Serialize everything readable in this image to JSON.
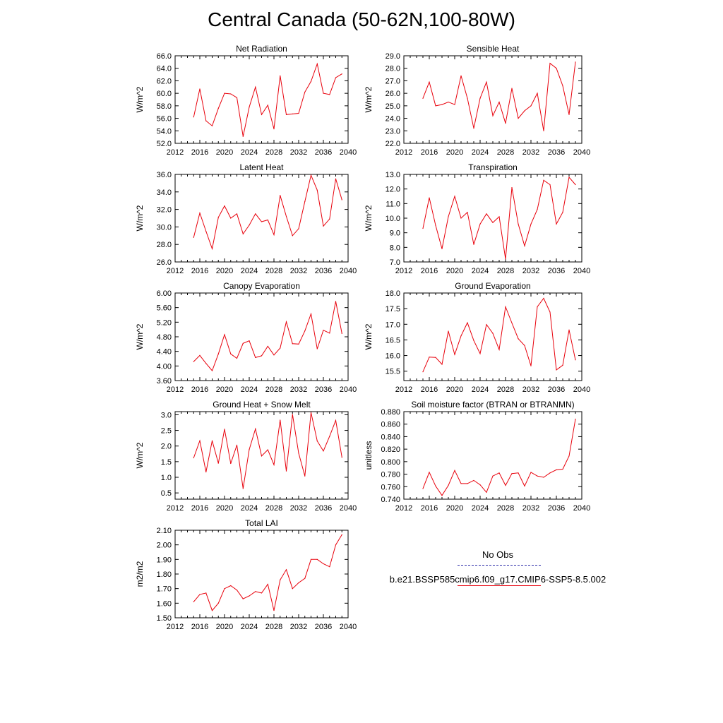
{
  "title": "Central Canada (50-62N,100-80W)",
  "colors": {
    "model": "#e8000b",
    "obs": "#2a2aa8"
  },
  "legend": {
    "obs_label": "No Obs",
    "model_label": "b.e21.BSSP585cmip6.f09_g17.CMIP6-SSP5-8.5.002"
  },
  "chart_data": [
    {
      "type": "line",
      "title": "Net Radiation",
      "ylabel": "W/m^2",
      "xlim": [
        2012,
        2040
      ],
      "xticks": [
        2012,
        2016,
        2020,
        2024,
        2028,
        2032,
        2036,
        2040
      ],
      "ylim": [
        52,
        66
      ],
      "yticks": [
        "52.0",
        "54.0",
        "56.0",
        "58.0",
        "60.0",
        "62.0",
        "64.0",
        "66.0"
      ],
      "x": [
        2015,
        2016,
        2017,
        2018,
        2019,
        2020,
        2021,
        2022,
        2023,
        2024,
        2025,
        2026,
        2027,
        2028,
        2029,
        2030,
        2031,
        2032,
        2033,
        2034,
        2035,
        2036,
        2037,
        2038,
        2039
      ],
      "series": [
        {
          "values": [
            56.2,
            60.7,
            55.6,
            54.8,
            57.6,
            60.0,
            59.9,
            59.3,
            53.1,
            57.8,
            61.0,
            56.6,
            58.1,
            54.3,
            62.8,
            56.6,
            56.7,
            56.8,
            60.2,
            61.9,
            64.7,
            60.0,
            59.8,
            62.5,
            63.1
          ]
        }
      ]
    },
    {
      "type": "line",
      "title": "Sensible Heat",
      "ylabel": "W/m^2",
      "xlim": [
        2012,
        2040
      ],
      "xticks": [
        2012,
        2016,
        2020,
        2024,
        2028,
        2032,
        2036,
        2040
      ],
      "ylim": [
        22,
        29
      ],
      "yticks": [
        "22.0",
        "23.0",
        "24.0",
        "25.0",
        "26.0",
        "27.0",
        "28.0",
        "29.0"
      ],
      "x": [
        2015,
        2016,
        2017,
        2018,
        2019,
        2020,
        2021,
        2022,
        2023,
        2024,
        2025,
        2026,
        2027,
        2028,
        2029,
        2030,
        2031,
        2032,
        2033,
        2034,
        2035,
        2036,
        2037,
        2038,
        2039
      ],
      "series": [
        {
          "values": [
            25.6,
            26.9,
            25.0,
            25.1,
            25.3,
            25.1,
            27.4,
            25.6,
            23.2,
            25.6,
            26.9,
            24.2,
            25.3,
            23.6,
            26.4,
            24.0,
            24.6,
            25.0,
            26.0,
            23.0,
            28.4,
            28.0,
            26.6,
            24.3,
            28.5
          ]
        }
      ]
    },
    {
      "type": "line",
      "title": "Latent Heat",
      "ylabel": "W/m^2",
      "xlim": [
        2012,
        2040
      ],
      "xticks": [
        2012,
        2016,
        2020,
        2024,
        2028,
        2032,
        2036,
        2040
      ],
      "ylim": [
        26,
        36
      ],
      "yticks": [
        "26.0",
        "28.0",
        "30.0",
        "32.0",
        "34.0",
        "36.0"
      ],
      "x": [
        2015,
        2016,
        2017,
        2018,
        2019,
        2020,
        2021,
        2022,
        2023,
        2024,
        2025,
        2026,
        2027,
        2028,
        2029,
        2030,
        2031,
        2032,
        2033,
        2034,
        2035,
        2036,
        2037,
        2038,
        2039
      ],
      "series": [
        {
          "values": [
            28.8,
            31.6,
            29.5,
            27.5,
            31.1,
            32.4,
            31.0,
            31.5,
            29.2,
            30.2,
            31.5,
            30.6,
            30.8,
            29.1,
            33.6,
            31.2,
            29.0,
            29.8,
            32.9,
            35.9,
            34.2,
            30.1,
            30.9,
            35.5,
            33.1
          ]
        }
      ]
    },
    {
      "type": "line",
      "title": "Transpiration",
      "ylabel": "W/m^2",
      "xlim": [
        2012,
        2040
      ],
      "xticks": [
        2012,
        2016,
        2020,
        2024,
        2028,
        2032,
        2036,
        2040
      ],
      "ylim": [
        7,
        13
      ],
      "yticks": [
        "7.0",
        "8.0",
        "9.0",
        "10.0",
        "11.0",
        "12.0",
        "13.0"
      ],
      "x": [
        2015,
        2016,
        2017,
        2018,
        2019,
        2020,
        2021,
        2022,
        2023,
        2024,
        2025,
        2026,
        2027,
        2028,
        2029,
        2030,
        2031,
        2032,
        2033,
        2034,
        2035,
        2036,
        2037,
        2038,
        2039
      ],
      "series": [
        {
          "values": [
            9.3,
            11.4,
            9.5,
            7.9,
            10.1,
            11.5,
            10.0,
            10.4,
            8.2,
            9.6,
            10.3,
            9.7,
            10.1,
            7.2,
            12.1,
            9.6,
            8.1,
            9.6,
            10.6,
            12.6,
            12.3,
            9.6,
            10.4,
            12.8,
            12.3
          ]
        }
      ]
    },
    {
      "type": "line",
      "title": "Canopy Evaporation",
      "ylabel": "W/m^2",
      "xlim": [
        2012,
        2040
      ],
      "xticks": [
        2012,
        2016,
        2020,
        2024,
        2028,
        2032,
        2036,
        2040
      ],
      "ylim": [
        3.6,
        6.0
      ],
      "yticks": [
        "3.60",
        "4.00",
        "4.40",
        "4.80",
        "5.20",
        "5.60",
        "6.00"
      ],
      "x": [
        2015,
        2016,
        2017,
        2018,
        2019,
        2020,
        2021,
        2022,
        2023,
        2024,
        2025,
        2026,
        2027,
        2028,
        2029,
        2030,
        2031,
        2032,
        2033,
        2034,
        2035,
        2036,
        2037,
        2038,
        2039
      ],
      "series": [
        {
          "values": [
            4.12,
            4.29,
            4.07,
            3.87,
            4.33,
            4.86,
            4.33,
            4.21,
            4.62,
            4.69,
            4.23,
            4.28,
            4.54,
            4.3,
            4.49,
            5.21,
            4.61,
            4.6,
            4.96,
            5.43,
            4.47,
            4.98,
            4.9,
            5.77,
            4.89
          ]
        }
      ]
    },
    {
      "type": "line",
      "title": "Ground Evaporation",
      "ylabel": "W/m^2",
      "xlim": [
        2012,
        2040
      ],
      "xticks": [
        2012,
        2016,
        2020,
        2024,
        2028,
        2032,
        2036,
        2040
      ],
      "ylim": [
        15.2,
        18.0
      ],
      "yticks": [
        "15.5",
        "16.0",
        "16.5",
        "17.0",
        "17.5",
        "18.0"
      ],
      "x": [
        2015,
        2016,
        2017,
        2018,
        2019,
        2020,
        2021,
        2022,
        2023,
        2024,
        2025,
        2026,
        2027,
        2028,
        2029,
        2030,
        2031,
        2032,
        2033,
        2034,
        2035,
        2036,
        2037,
        2038,
        2039
      ],
      "series": [
        {
          "values": [
            15.48,
            15.95,
            15.94,
            15.72,
            16.78,
            16.03,
            16.63,
            17.05,
            16.48,
            16.06,
            16.99,
            16.71,
            16.19,
            17.56,
            17.04,
            16.54,
            16.32,
            15.67,
            17.56,
            17.83,
            17.39,
            15.54,
            15.69,
            16.82,
            15.86
          ]
        }
      ]
    },
    {
      "type": "line",
      "title": "Ground Heat + Snow Melt",
      "ylabel": "W/m^2",
      "xlim": [
        2012,
        2040
      ],
      "xticks": [
        2012,
        2016,
        2020,
        2024,
        2028,
        2032,
        2036,
        2040
      ],
      "ylim": [
        0.3,
        3.1
      ],
      "yticks": [
        "0.5",
        "1.0",
        "1.5",
        "2.0",
        "2.5",
        "3.0"
      ],
      "x": [
        2015,
        2016,
        2017,
        2018,
        2019,
        2020,
        2021,
        2022,
        2023,
        2024,
        2025,
        2026,
        2027,
        2028,
        2029,
        2030,
        2031,
        2032,
        2033,
        2034,
        2035,
        2036,
        2037,
        2038,
        2039
      ],
      "series": [
        {
          "values": [
            1.62,
            2.17,
            1.17,
            2.17,
            1.45,
            2.54,
            1.44,
            2.03,
            0.64,
            1.89,
            2.55,
            1.68,
            1.88,
            1.4,
            2.83,
            1.2,
            3.01,
            1.77,
            1.04,
            3.07,
            2.16,
            1.84,
            2.31,
            2.82,
            1.64
          ]
        }
      ]
    },
    {
      "type": "line",
      "title": "Soil moisture factor (BTRAN or BTRANMN)",
      "ylabel": "unitless",
      "xlim": [
        2012,
        2040
      ],
      "xticks": [
        2012,
        2016,
        2020,
        2024,
        2028,
        2032,
        2036,
        2040
      ],
      "ylim": [
        0.74,
        0.88
      ],
      "yticks": [
        "0.740",
        "0.760",
        "0.780",
        "0.800",
        "0.820",
        "0.840",
        "0.860",
        "0.880"
      ],
      "x": [
        2015,
        2016,
        2017,
        2018,
        2019,
        2020,
        2021,
        2022,
        2023,
        2024,
        2025,
        2026,
        2027,
        2028,
        2029,
        2030,
        2031,
        2032,
        2033,
        2034,
        2035,
        2036,
        2037,
        2038,
        2039
      ],
      "series": [
        {
          "values": [
            0.757,
            0.783,
            0.761,
            0.746,
            0.762,
            0.786,
            0.765,
            0.765,
            0.77,
            0.763,
            0.751,
            0.777,
            0.782,
            0.762,
            0.781,
            0.782,
            0.761,
            0.783,
            0.777,
            0.775,
            0.782,
            0.787,
            0.788,
            0.809,
            0.868
          ]
        }
      ]
    },
    {
      "type": "line",
      "title": "Total LAI",
      "ylabel": "m2/m2",
      "xlim": [
        2012,
        2040
      ],
      "xticks": [
        2012,
        2016,
        2020,
        2024,
        2028,
        2032,
        2036,
        2040
      ],
      "ylim": [
        1.5,
        2.1
      ],
      "yticks": [
        "1.50",
        "1.60",
        "1.70",
        "1.80",
        "1.90",
        "2.00",
        "2.10"
      ],
      "x": [
        2015,
        2016,
        2017,
        2018,
        2019,
        2020,
        2021,
        2022,
        2023,
        2024,
        2025,
        2026,
        2027,
        2028,
        2029,
        2030,
        2031,
        2032,
        2033,
        2034,
        2035,
        2036,
        2037,
        2038,
        2039
      ],
      "series": [
        {
          "values": [
            1.61,
            1.66,
            1.67,
            1.55,
            1.6,
            1.7,
            1.72,
            1.69,
            1.63,
            1.65,
            1.68,
            1.67,
            1.73,
            1.55,
            1.76,
            1.83,
            1.7,
            1.74,
            1.77,
            1.9,
            1.9,
            1.87,
            1.85,
            2.0,
            2.07
          ]
        }
      ]
    }
  ]
}
